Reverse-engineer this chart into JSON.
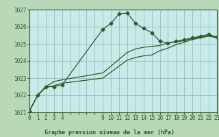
{
  "title": "Graphe pression niveau de la mer (hPa)",
  "bg_color": "#b8d8b8",
  "plot_bg_color": "#c8eae8",
  "grid_color": "#99bbbb",
  "line_color": "#2d5a2d",
  "ylim": [
    1021,
    1027
  ],
  "xlim": [
    0,
    23
  ],
  "yticks": [
    1021,
    1022,
    1023,
    1024,
    1025,
    1026,
    1027
  ],
  "xtick_positions": [
    0,
    1,
    2,
    3,
    4,
    5,
    6,
    7,
    8,
    9,
    10,
    11,
    12,
    13,
    14,
    15,
    16,
    17,
    18,
    19,
    20,
    21,
    22,
    23
  ],
  "xtick_labels": [
    "0",
    "1",
    "2",
    "3",
    "4",
    "",
    "",
    "",
    "",
    "9",
    "10",
    "11",
    "12",
    "13",
    "14",
    "15",
    "16",
    "17",
    "18",
    "19",
    "20",
    "21",
    "22",
    "23"
  ],
  "line1_x": [
    0,
    1,
    2,
    3,
    4,
    9,
    10,
    11,
    12,
    13,
    14,
    15,
    16,
    17,
    18,
    19,
    20,
    21,
    22,
    23
  ],
  "line1_y": [
    1021.1,
    1022.0,
    1022.5,
    1022.5,
    1022.6,
    1025.85,
    1026.2,
    1026.75,
    1026.8,
    1026.2,
    1025.9,
    1025.65,
    1025.15,
    1025.05,
    1025.15,
    1025.25,
    1025.35,
    1025.45,
    1025.55,
    1025.4
  ],
  "line2_x": [
    0,
    1,
    2,
    3,
    4,
    9,
    10,
    11,
    12,
    13,
    14,
    15,
    16,
    17,
    18,
    19,
    20,
    21,
    22,
    23
  ],
  "line2_y": [
    1021.1,
    1022.0,
    1022.5,
    1022.8,
    1022.9,
    1023.3,
    1023.7,
    1024.1,
    1024.5,
    1024.7,
    1024.8,
    1024.85,
    1024.9,
    1025.05,
    1025.1,
    1025.2,
    1025.3,
    1025.4,
    1025.5,
    1025.4
  ],
  "line3_x": [
    0,
    1,
    2,
    3,
    4,
    9,
    10,
    11,
    12,
    13,
    14,
    15,
    16,
    17,
    18,
    19,
    20,
    21,
    22,
    23
  ],
  "line3_y": [
    1021.1,
    1022.0,
    1022.45,
    1022.55,
    1022.7,
    1023.0,
    1023.35,
    1023.7,
    1024.05,
    1024.2,
    1024.3,
    1024.35,
    1024.6,
    1024.75,
    1024.95,
    1025.1,
    1025.25,
    1025.35,
    1025.45,
    1025.35
  ]
}
